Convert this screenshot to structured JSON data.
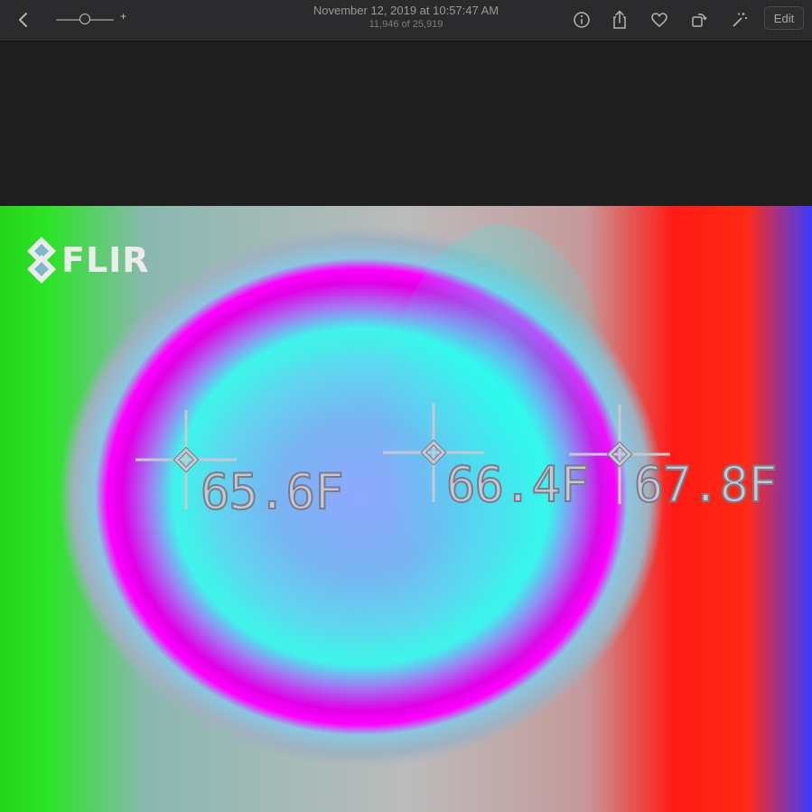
{
  "window": {
    "title": "November 12, 2019 at 10:57:47 AM",
    "subtitle": "11,946 of 25,919"
  },
  "toolbar": {
    "zoom_level": 0.5,
    "zoom_plus_label": "+",
    "edit_label": "Edit",
    "icons": [
      "back-chevron-icon",
      "info-icon",
      "share-icon",
      "heart-icon",
      "rotate-icon",
      "magic-wand-icon"
    ]
  },
  "photo": {
    "logo_text": "FLIR",
    "readings": [
      {
        "value": "65.6F"
      },
      {
        "value": "66.4F"
      },
      {
        "value": "67.8F"
      }
    ]
  }
}
